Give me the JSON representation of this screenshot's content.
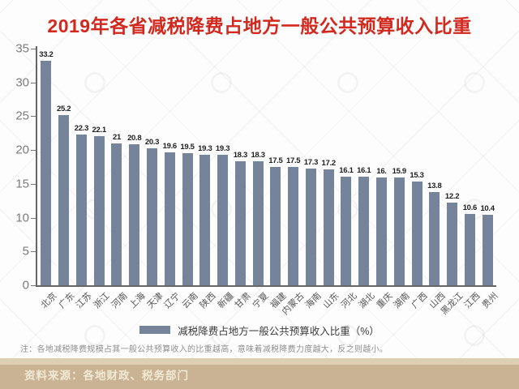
{
  "title": "2019年各省减税降费占地方一般公共预算收入比重",
  "note": "注：各地减税降费规模占其一般公共预算收入的比重越高，意味着减税降费力度越大，反之则越小。",
  "source": "资料来源：各地财政、税务部门",
  "colors": {
    "title": "#d2291f",
    "bar": "#75839b",
    "axis": "#666666",
    "source_band": "#c9b394",
    "source_strip": "#dccfb2",
    "source_text": "#f1e9d4"
  },
  "chart_data": {
    "type": "bar",
    "title": "2019年各省减税降费占地方一般公共预算收入比重",
    "categories": [
      "北京",
      "广东",
      "江苏",
      "浙江",
      "河南",
      "上海",
      "天津",
      "辽宁",
      "云南",
      "陕西",
      "新疆",
      "甘肃",
      "宁夏",
      "福建",
      "内蒙古",
      "海南",
      "山东",
      "河北",
      "湖北",
      "重庆",
      "湖南",
      "广西",
      "山西",
      "黑龙江",
      "江西",
      "贵州"
    ],
    "values": [
      33.2,
      25.2,
      22.3,
      22.1,
      21,
      20.8,
      20.3,
      19.6,
      19.5,
      19.3,
      19.3,
      18.3,
      18.3,
      17.5,
      17.5,
      17.3,
      17.2,
      16.1,
      16.1,
      16,
      15.9,
      15.3,
      13.8,
      12.2,
      10.6,
      10.4
    ],
    "value_labels": [
      "33.2",
      "25.2",
      "22.3",
      "22.1",
      "21",
      "20.8",
      "20.3",
      "19.6",
      "19.5",
      "19.3",
      "19.3",
      "18.3",
      "18.3",
      "17.5",
      "17.5",
      "17.3",
      "17.2",
      "16.1",
      "16.1",
      "16.",
      "15.9",
      "15.3",
      "13.8",
      "12.2",
      "10.6",
      "10.4"
    ],
    "xlabel": "",
    "ylabel": "",
    "ylim": [
      0,
      35
    ],
    "yticks": [
      0,
      5,
      10,
      15,
      20,
      25,
      30,
      35
    ],
    "grid": false,
    "legend": "减税降费占地方一般公共预算收入比重（%）",
    "legend_position": "bottom"
  }
}
